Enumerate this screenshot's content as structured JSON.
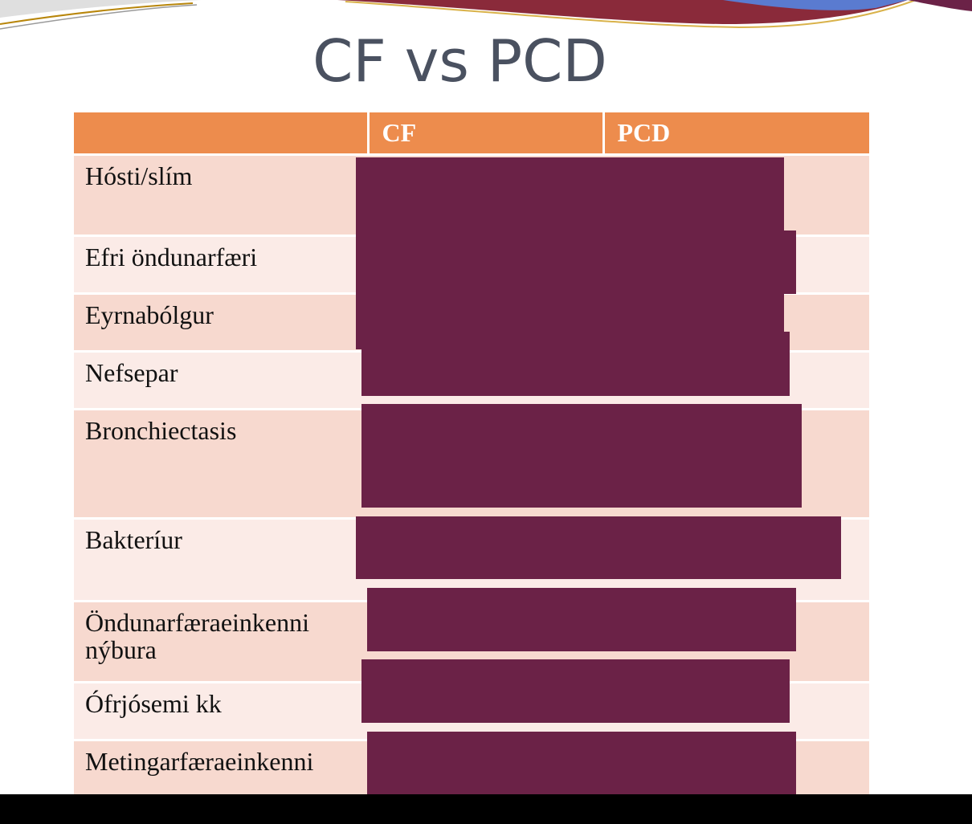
{
  "slide": {
    "title": "CF vs PCD"
  },
  "table": {
    "headers": [
      "",
      "CF",
      "PCD"
    ],
    "rows": [
      {
        "label": "Hósti/slím"
      },
      {
        "label": "Efri öndunarfæri"
      },
      {
        "label": "Eyrnabólgur"
      },
      {
        "label": "Nefsepar"
      },
      {
        "label": "Bronchiectasis"
      },
      {
        "label": "Bakteríur"
      },
      {
        "label": "Öndunarfæraeinkenni nýbura"
      },
      {
        "label": "Ófrjósemi kk"
      },
      {
        "label": "Metingarfæraeinkenni"
      }
    ]
  },
  "colors": {
    "header": "#ed8c4d",
    "row_odd": "#f7d9cf",
    "row_even": "#fbebe7",
    "redaction": "#6b2247",
    "title": "#4a5160"
  }
}
